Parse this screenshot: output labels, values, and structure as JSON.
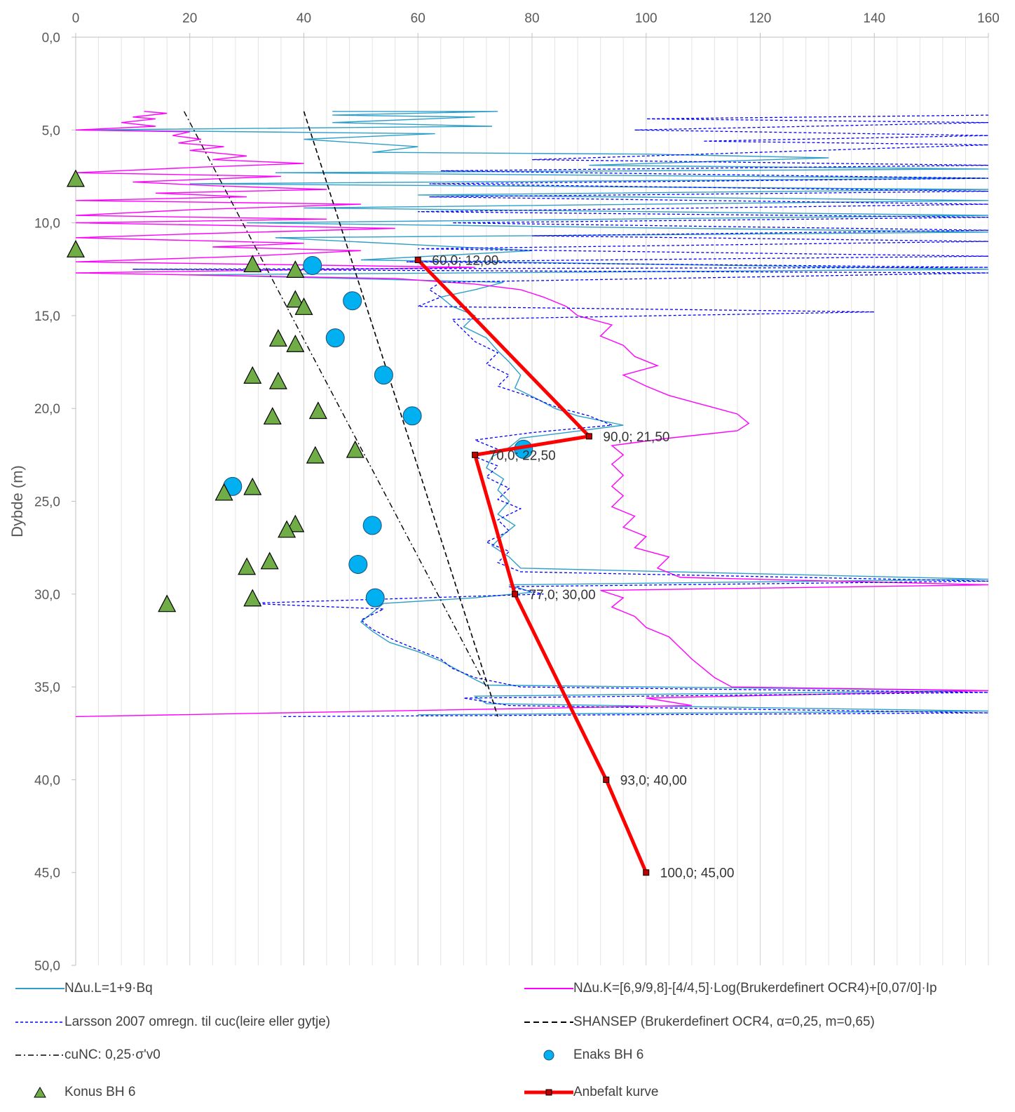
{
  "chart_data": {
    "type": "line",
    "xlabel": "",
    "ylabel": "Dybde (m)",
    "xlim": [
      0,
      160
    ],
    "ylim": [
      50,
      0
    ],
    "x_ticks": [
      0,
      20,
      40,
      60,
      80,
      100,
      120,
      140,
      160
    ],
    "y_ticks": [
      "0,0",
      "5,0",
      "10,0",
      "15,0",
      "20,0",
      "25,0",
      "30,0",
      "35,0",
      "40,0",
      "45,0",
      "50,0"
    ],
    "grid": "vertical minor lines every 4, horizontal none",
    "series": [
      {
        "name": "NΔu.L=1+9·Bq",
        "style": "solid",
        "color": "#2e9fc9",
        "points": [
          [
            45,
            4.0
          ],
          [
            74,
            4.0
          ],
          [
            45,
            4.2
          ],
          [
            70,
            4.3
          ],
          [
            45,
            4.6
          ],
          [
            73,
            4.8
          ],
          [
            0,
            5.0
          ],
          [
            63,
            5.2
          ],
          [
            40,
            5.5
          ],
          [
            60,
            5.9
          ],
          [
            52,
            6.2
          ],
          [
            100,
            6.3
          ],
          [
            132,
            6.5
          ],
          [
            90,
            6.9
          ],
          [
            160,
            7.1
          ],
          [
            35,
            7.3
          ],
          [
            160,
            7.6
          ],
          [
            20,
            7.9
          ],
          [
            160,
            8.2
          ],
          [
            60,
            8.5
          ],
          [
            160,
            8.8
          ],
          [
            40,
            9.2
          ],
          [
            160,
            9.6
          ],
          [
            30,
            10.0
          ],
          [
            160,
            10.5
          ],
          [
            35,
            10.8
          ],
          [
            80,
            11.5
          ],
          [
            50,
            12.0
          ],
          [
            160,
            12.5
          ],
          [
            20,
            12.8
          ],
          [
            75,
            13.2
          ],
          [
            70,
            13.6
          ],
          [
            64,
            14.0
          ],
          [
            66,
            14.5
          ],
          [
            70,
            15.0
          ],
          [
            68,
            15.6
          ],
          [
            72,
            16.2
          ],
          [
            74,
            16.9
          ],
          [
            76,
            17.5
          ],
          [
            78,
            18.2
          ],
          [
            77,
            18.9
          ],
          [
            81,
            19.5
          ],
          [
            84,
            20.0
          ],
          [
            88,
            20.4
          ],
          [
            96,
            20.9
          ],
          [
            86,
            21.3
          ],
          [
            78,
            21.6
          ],
          [
            76,
            22.1
          ],
          [
            73,
            22.6
          ],
          [
            72,
            23.2
          ],
          [
            75,
            23.8
          ],
          [
            74,
            24.4
          ],
          [
            76,
            25.0
          ],
          [
            74,
            25.7
          ],
          [
            77,
            26.3
          ],
          [
            75,
            26.8
          ],
          [
            73,
            27.4
          ],
          [
            76,
            28.0
          ],
          [
            78,
            28.6
          ],
          [
            160,
            29.2
          ],
          [
            76,
            29.5
          ],
          [
            80,
            29.9
          ],
          [
            70,
            30.2
          ],
          [
            54,
            30.5
          ],
          [
            52,
            31.0
          ],
          [
            50,
            31.5
          ],
          [
            52,
            32.0
          ],
          [
            55,
            32.6
          ],
          [
            60,
            33.1
          ],
          [
            64,
            33.6
          ],
          [
            67,
            34.1
          ],
          [
            70,
            34.6
          ],
          [
            72,
            34.9
          ],
          [
            160,
            35.2
          ],
          [
            70,
            35.5
          ],
          [
            72,
            35.9
          ],
          [
            160,
            36.3
          ],
          [
            60,
            36.5
          ]
        ]
      },
      {
        "name": "NΔu.K=[6,9/9,8]-[4/4,5]·Log(Brukerdefinert OCR4)+[0,07/0]·Ip",
        "style": "solid",
        "color": "#ff00ff",
        "points": [
          [
            12,
            4.0
          ],
          [
            16,
            4.1
          ],
          [
            10,
            4.3
          ],
          [
            14,
            4.4
          ],
          [
            8,
            4.6
          ],
          [
            14,
            4.8
          ],
          [
            0,
            5.0
          ],
          [
            20,
            5.1
          ],
          [
            17,
            5.3
          ],
          [
            22,
            5.5
          ],
          [
            18,
            5.7
          ],
          [
            26,
            5.9
          ],
          [
            20,
            6.1
          ],
          [
            30,
            6.4
          ],
          [
            24,
            6.6
          ],
          [
            40,
            6.8
          ],
          [
            22,
            7.0
          ],
          [
            0,
            7.3
          ],
          [
            36,
            7.5
          ],
          [
            10,
            7.8
          ],
          [
            24,
            8.0
          ],
          [
            44,
            8.2
          ],
          [
            14,
            8.4
          ],
          [
            30,
            8.6
          ],
          [
            0,
            8.8
          ],
          [
            50,
            9.0
          ],
          [
            20,
            9.3
          ],
          [
            0,
            9.6
          ],
          [
            44,
            9.8
          ],
          [
            0,
            10.0
          ],
          [
            56,
            10.3
          ],
          [
            20,
            10.6
          ],
          [
            0,
            10.8
          ],
          [
            40,
            11.1
          ],
          [
            24,
            11.3
          ],
          [
            50,
            11.5
          ],
          [
            30,
            11.8
          ],
          [
            0,
            12.1
          ],
          [
            70,
            12.4
          ],
          [
            0,
            12.7
          ],
          [
            56,
            13.0
          ],
          [
            70,
            13.3
          ],
          [
            78,
            13.6
          ],
          [
            82,
            14.0
          ],
          [
            86,
            14.5
          ],
          [
            88,
            15.0
          ],
          [
            94,
            15.5
          ],
          [
            92,
            16.1
          ],
          [
            96,
            16.6
          ],
          [
            98,
            17.2
          ],
          [
            102,
            17.7
          ],
          [
            96,
            18.2
          ],
          [
            100,
            18.8
          ],
          [
            104,
            19.3
          ],
          [
            110,
            19.8
          ],
          [
            116,
            20.3
          ],
          [
            118,
            20.8
          ],
          [
            116,
            21.2
          ],
          [
            104,
            21.6
          ],
          [
            94,
            22.0
          ],
          [
            96,
            22.5
          ],
          [
            94,
            23.0
          ],
          [
            96,
            23.6
          ],
          [
            94,
            24.2
          ],
          [
            96,
            24.7
          ],
          [
            94,
            25.3
          ],
          [
            98,
            25.8
          ],
          [
            96,
            26.4
          ],
          [
            100,
            26.9
          ],
          [
            98,
            27.5
          ],
          [
            104,
            28.0
          ],
          [
            102,
            28.6
          ],
          [
            106,
            29.1
          ],
          [
            160,
            29.5
          ],
          [
            92,
            29.8
          ],
          [
            96,
            30.2
          ],
          [
            94,
            30.7
          ],
          [
            98,
            31.2
          ],
          [
            100,
            31.8
          ],
          [
            104,
            32.3
          ],
          [
            106,
            32.9
          ],
          [
            108,
            33.5
          ],
          [
            110,
            34.0
          ],
          [
            112,
            34.5
          ],
          [
            115,
            35.0
          ],
          [
            160,
            35.2
          ],
          [
            100,
            35.6
          ],
          [
            108,
            36.0
          ],
          [
            0,
            36.6
          ]
        ]
      },
      {
        "name": "Larsson 2007 omregn. til cuc(leire eller gytje)",
        "style": "dashed",
        "color": "#0000ff",
        "points": [
          [
            160,
            4.2
          ],
          [
            100,
            4.4
          ],
          [
            160,
            4.6
          ],
          [
            98,
            5.0
          ],
          [
            160,
            5.3
          ],
          [
            110,
            5.6
          ],
          [
            160,
            5.8
          ],
          [
            80,
            6.6
          ],
          [
            160,
            6.9
          ],
          [
            64,
            7.2
          ],
          [
            160,
            7.6
          ],
          [
            62,
            7.9
          ],
          [
            160,
            8.3
          ],
          [
            62,
            8.6
          ],
          [
            160,
            9.0
          ],
          [
            60,
            9.4
          ],
          [
            160,
            9.7
          ],
          [
            66,
            10.0
          ],
          [
            160,
            10.4
          ],
          [
            80,
            10.7
          ],
          [
            160,
            11.0
          ],
          [
            60,
            11.4
          ],
          [
            160,
            11.8
          ],
          [
            58,
            12.1
          ],
          [
            160,
            12.4
          ],
          [
            10,
            12.5
          ],
          [
            160,
            12.7
          ],
          [
            64,
            13.2
          ],
          [
            62,
            13.6
          ],
          [
            64,
            14.0
          ],
          [
            60,
            14.5
          ],
          [
            140,
            14.8
          ],
          [
            66,
            15.2
          ],
          [
            68,
            15.8
          ],
          [
            70,
            16.4
          ],
          [
            74,
            17.0
          ],
          [
            72,
            17.6
          ],
          [
            76,
            18.2
          ],
          [
            74,
            18.8
          ],
          [
            80,
            19.4
          ],
          [
            84,
            19.9
          ],
          [
            90,
            20.4
          ],
          [
            94,
            20.9
          ],
          [
            80,
            21.3
          ],
          [
            70,
            21.7
          ],
          [
            74,
            22.2
          ],
          [
            70,
            22.6
          ],
          [
            74,
            23.1
          ],
          [
            72,
            23.7
          ],
          [
            76,
            24.3
          ],
          [
            74,
            24.9
          ],
          [
            78,
            25.4
          ],
          [
            74,
            26.0
          ],
          [
            76,
            26.6
          ],
          [
            72,
            27.2
          ],
          [
            76,
            27.7
          ],
          [
            74,
            28.3
          ],
          [
            78,
            28.8
          ],
          [
            160,
            29.3
          ],
          [
            76,
            29.6
          ],
          [
            82,
            30.0
          ],
          [
            30,
            30.5
          ],
          [
            54,
            30.8
          ],
          [
            50,
            31.4
          ],
          [
            52,
            31.9
          ],
          [
            56,
            32.5
          ],
          [
            60,
            33.0
          ],
          [
            64,
            33.5
          ],
          [
            66,
            34.0
          ],
          [
            70,
            34.5
          ],
          [
            78,
            35.0
          ],
          [
            160,
            35.3
          ],
          [
            68,
            35.6
          ],
          [
            76,
            36.0
          ],
          [
            160,
            36.4
          ],
          [
            36,
            36.6
          ]
        ]
      },
      {
        "name": "SHANSEP (Brukerdefinert OCR4, α=0,25, m=0,65)",
        "style": "dashed",
        "color": "#000000",
        "points": [
          [
            40,
            4.0
          ],
          [
            74,
            36.6
          ]
        ]
      },
      {
        "name": "cuNC: 0,25·σ'v0",
        "style": "dashdot",
        "color": "#000000",
        "points": [
          [
            19,
            4.0
          ],
          [
            72,
            35.0
          ]
        ]
      },
      {
        "name": "Enaks BH 6",
        "style": "marker-circle",
        "color": "#00b0f0",
        "points": [
          [
            41.5,
            12.3
          ],
          [
            48.5,
            14.2
          ],
          [
            45.5,
            16.2
          ],
          [
            54,
            18.2
          ],
          [
            59,
            20.4
          ],
          [
            78.5,
            22.2
          ],
          [
            27.5,
            24.2
          ],
          [
            52,
            26.3
          ],
          [
            49.5,
            28.4
          ],
          [
            52.5,
            30.2
          ]
        ]
      },
      {
        "name": "Konus BH 6",
        "style": "marker-triangle",
        "color": "#70ad47",
        "points": [
          [
            0,
            7.7
          ],
          [
            0,
            11.5
          ],
          [
            31,
            12.3
          ],
          [
            38.5,
            12.6
          ],
          [
            38.5,
            14.2
          ],
          [
            40,
            14.6
          ],
          [
            35.5,
            16.3
          ],
          [
            38.5,
            16.6
          ],
          [
            31,
            18.3
          ],
          [
            35.5,
            18.6
          ],
          [
            34.5,
            20.5
          ],
          [
            42.5,
            20.2
          ],
          [
            42,
            22.6
          ],
          [
            49,
            22.3
          ],
          [
            31,
            24.3
          ],
          [
            26,
            24.6
          ],
          [
            38.5,
            26.3
          ],
          [
            37,
            26.6
          ],
          [
            34,
            28.3
          ],
          [
            30,
            28.6
          ],
          [
            31,
            30.3
          ],
          [
            16,
            30.6
          ]
        ]
      },
      {
        "name": "Anbefalt kurve",
        "style": "thick-marker",
        "color": "#ff0000",
        "points": [
          [
            60,
            12
          ],
          [
            90,
            21.5
          ],
          [
            70,
            22.5
          ],
          [
            77,
            30
          ],
          [
            93,
            40
          ],
          [
            100,
            45
          ]
        ],
        "labels": [
          "60,0; 12,00",
          "90,0; 21,50",
          "70,0; 22,50",
          "77,0; 30,00",
          "93,0; 40,00",
          "100,0; 45,00"
        ]
      }
    ]
  },
  "legend": {
    "nl": "NΔu.L=1+9·Bq",
    "nk": "NΔu.K=[6,9/9,8]-[4/4,5]·Log(Brukerdefinert OCR4)+[0,07/0]·Ip",
    "larsson": "Larsson 2007 omregn. til cuc(leire eller gytje)",
    "shansep": "SHANSEP (Brukerdefinert OCR4, α=0,25, m=0,65)",
    "cunc": "cuNC: 0,25·σ'v0",
    "enaks": "Enaks BH 6",
    "konus": "Konus BH 6",
    "anbefalt": "Anbefalt kurve"
  }
}
